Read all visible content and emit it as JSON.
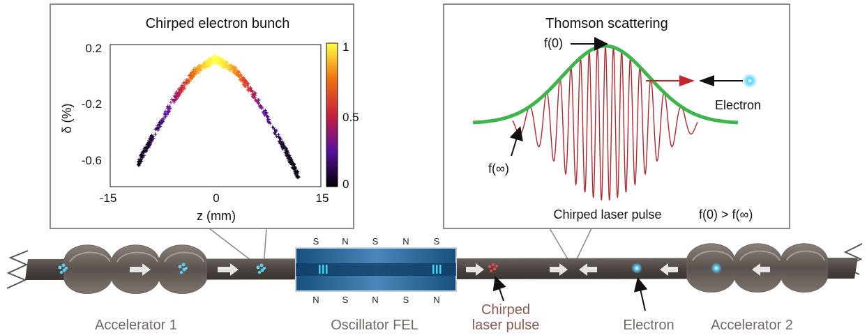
{
  "inset_left": {
    "title": "Chirped electron bunch",
    "ylabel": "δ (%)",
    "xlabel": "z (mm)"
  },
  "inset_right": {
    "title": "Thomson scattering",
    "label_peak": "f(0)",
    "label_tail": "f(∞)",
    "label_electron": "Electron",
    "label_pulse": "Chirped laser pulse",
    "relation": "f(0) > f(∞)"
  },
  "chart_data": {
    "type": "scatter",
    "title": "Chirped electron bunch",
    "xlabel": "z (mm)",
    "ylabel": "δ (%)",
    "xlim": [
      -15,
      15
    ],
    "ylim": [
      -0.8,
      0.2
    ],
    "x_ticks": [
      "-15",
      "0",
      "15"
    ],
    "y_ticks": [
      "0.2",
      "-0.2",
      "-0.6"
    ],
    "colorbar": {
      "ticks": [
        "1",
        "0.5",
        "0"
      ],
      "range": [
        0,
        1
      ],
      "colormap": "black-purple-red-orange-yellow"
    },
    "curve": {
      "shape": "parabola",
      "delta_at_z0": 0.1,
      "points": [
        [
          -11,
          -0.64
        ],
        [
          -9,
          -0.45
        ],
        [
          -6,
          -0.19
        ],
        [
          -3,
          0.01
        ],
        [
          0,
          0.1
        ],
        [
          3,
          0.01
        ],
        [
          6,
          -0.19
        ],
        [
          9,
          -0.45
        ],
        [
          12,
          -0.75
        ]
      ]
    }
  },
  "diagram": {
    "undulator_top_poles": [
      "S",
      "N",
      "S",
      "N",
      "S"
    ],
    "undulator_bottom_poles": [
      "N",
      "S",
      "N",
      "S",
      "N"
    ],
    "labels": {
      "accelerator1": "Accelerator 1",
      "oscillator": "Oscillator FEL",
      "chirped_pulse_line1": "Chirped",
      "chirped_pulse_line2": "laser pulse",
      "electron": "Electron",
      "accelerator2": "Accelerator 2"
    }
  },
  "colors": {
    "beamline": "#4f4844",
    "envelope": "#3cb54a",
    "laser": "#b3262e",
    "undulator": "#1f5e8c",
    "electron": "#2aa7e0",
    "label_gray": "#6d6a66"
  }
}
